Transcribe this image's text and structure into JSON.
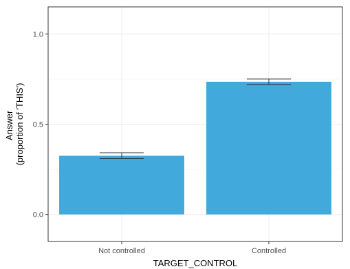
{
  "chart_data": {
    "type": "bar",
    "categories": [
      "Not controlled",
      "Controlled"
    ],
    "values": [
      0.325,
      0.735
    ],
    "error_bars": [
      {
        "low": 0.31,
        "high": 0.342
      },
      {
        "low": 0.72,
        "high": 0.75
      }
    ],
    "xlabel": "TARGET_CONTROL",
    "ylabel_lines": [
      "Answer",
      "(proportion of 'THIS')"
    ],
    "ylim": [
      -0.15,
      1.15
    ],
    "yticks": [
      0.0,
      0.5,
      1.0
    ],
    "ytick_labels": [
      "0.0",
      "0.5",
      "1.0"
    ],
    "grid": true,
    "legend": "none",
    "colors": {
      "bar": "#42a9dd",
      "error_bar": "#333333",
      "grid_major": "#ebebeb",
      "grid_minor": "#f5f5f5",
      "panel_border": "#333333"
    }
  }
}
